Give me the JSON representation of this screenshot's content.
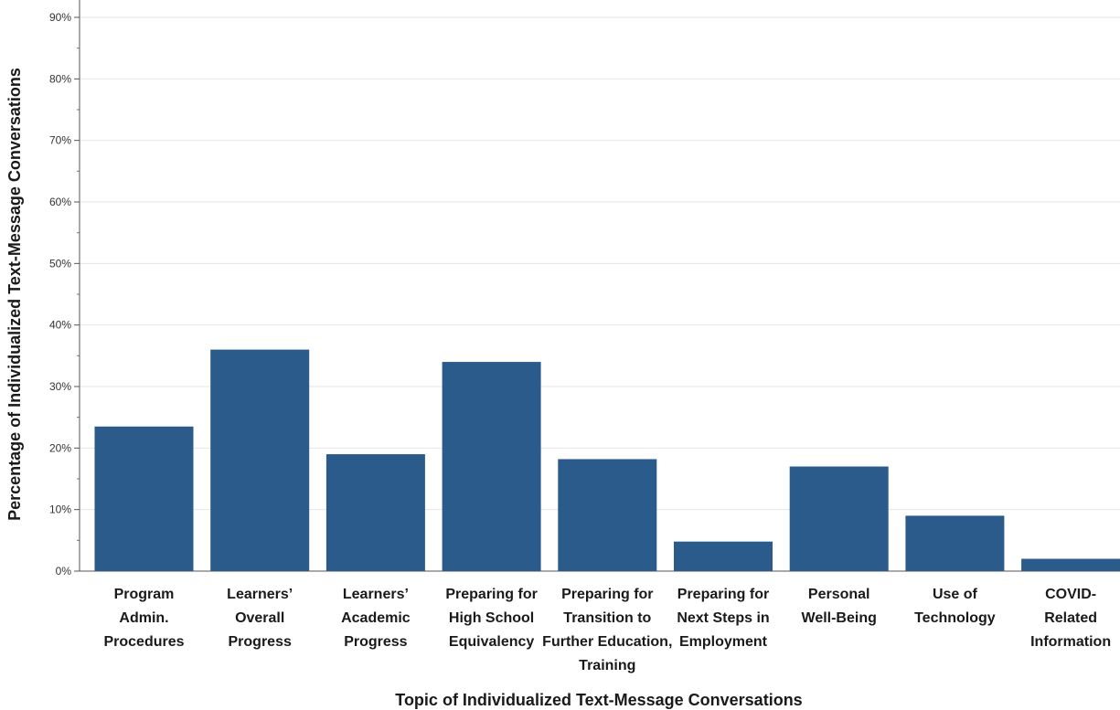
{
  "chart_data": {
    "type": "bar",
    "title": "",
    "xlabel": "Topic of Individualized Text-Message Conversations",
    "ylabel": "Percentage of Individualized Text-Message Conversations",
    "ylim": [
      0,
      90
    ],
    "yticks": [
      "0%",
      "10%",
      "20%",
      "30%",
      "40%",
      "50%",
      "60%",
      "70%",
      "80%",
      "90%"
    ],
    "grid": true,
    "bar_color": "#2a5b8b",
    "categories": [
      [
        "Program",
        "Admin.",
        "Procedures"
      ],
      [
        "Learners’",
        "Overall",
        "Progress"
      ],
      [
        "Learners’",
        "Academic",
        "Progress"
      ],
      [
        "Preparing for",
        "High School",
        "Equivalency"
      ],
      [
        "Preparing for",
        "Transition to",
        "Further Education,",
        "Training"
      ],
      [
        "Preparing for",
        "Next Steps in",
        "Employment"
      ],
      [
        "Personal",
        "Well-Being"
      ],
      [
        "Use of",
        "Technology"
      ],
      [
        "COVID-",
        "Related",
        "Information"
      ]
    ],
    "values": [
      23.5,
      36,
      19,
      34,
      18.2,
      4.8,
      17,
      9,
      2
    ]
  }
}
